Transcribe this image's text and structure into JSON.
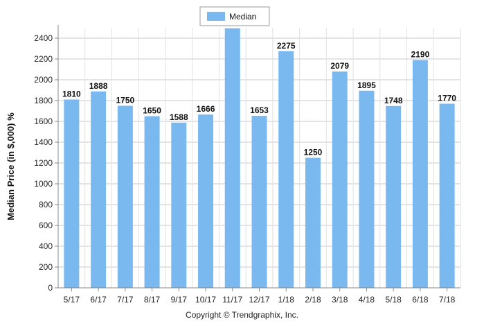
{
  "chart_data": {
    "type": "bar",
    "categories": [
      "5/17",
      "6/17",
      "7/17",
      "8/17",
      "9/17",
      "10/17",
      "11/17",
      "12/17",
      "1/18",
      "2/18",
      "3/18",
      "4/18",
      "5/18",
      "6/18",
      "7/18"
    ],
    "series": [
      {
        "name": "Median",
        "values": [
          1810,
          1888,
          1750,
          1650,
          1588,
          1666,
          2495,
          1653,
          2275,
          1250,
          2079,
          1895,
          1748,
          2190,
          1770
        ]
      }
    ],
    "data_labels": [
      "1810",
      "1888",
      "1750",
      "1650",
      "1588",
      "1666",
      "2495",
      "1653",
      "2275",
      "1250",
      "2079",
      "1895",
      "1748",
      "2190",
      "1770"
    ],
    "ylabel": "Median Price (in $,000) %",
    "xlabel": "",
    "ylim": [
      0,
      2500
    ],
    "yticks": [
      0,
      200,
      400,
      600,
      800,
      1000,
      1200,
      1400,
      1600,
      1800,
      2000,
      2200,
      2400
    ],
    "grid": true,
    "legend_position": "top-center",
    "bar_color": "#7ab9f0"
  },
  "footer": {
    "copyright": "Copyright © Trendgraphix, Inc."
  }
}
